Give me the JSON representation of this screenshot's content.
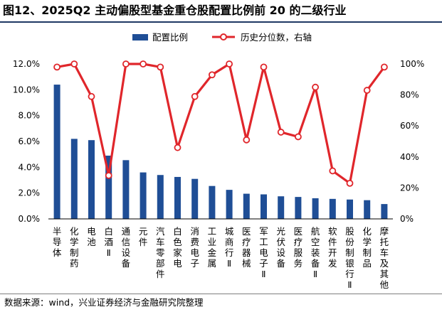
{
  "title": "图12、2025Q2 主动偏股型基金重仓股配置比例前 20 的二级行业",
  "source": "数据来源：wind，兴业证券经济与金融研究院整理",
  "colors": {
    "bar": "#1f4e96",
    "line": "#e0262b",
    "axis": "#000000",
    "rule": "#1f3864"
  },
  "chart_data": {
    "type": "bar+line",
    "categories": [
      "半导体",
      "化学制药",
      "电池",
      "白酒Ⅱ",
      "通信设备",
      "元件",
      "汽车零部件",
      "白色家电",
      "消费电子",
      "工业金属",
      "城商行Ⅱ",
      "医疗器械",
      "军工电子Ⅱ",
      "光伏设备",
      "医疗服务",
      "航空装备Ⅱ",
      "软件开发",
      "股份制银行Ⅱ",
      "化学制品",
      "摩托车及其他"
    ],
    "series": [
      {
        "name": "配置比例",
        "axis": "left",
        "type": "bar",
        "values": [
          10.4,
          6.2,
          6.1,
          4.9,
          4.55,
          3.6,
          3.4,
          3.25,
          3.1,
          2.55,
          2.25,
          1.95,
          1.9,
          1.75,
          1.7,
          1.6,
          1.55,
          1.5,
          1.45,
          1.15
        ]
      },
      {
        "name": "历史分位数，右轴",
        "axis": "right",
        "type": "line",
        "values": [
          98,
          100,
          79,
          28,
          100,
          100,
          98,
          46,
          79,
          93,
          100,
          51,
          98,
          56,
          53,
          85,
          31,
          23,
          83,
          98
        ]
      }
    ],
    "left_axis": {
      "ylim": [
        0,
        12
      ],
      "ticks": [
        "0.0%",
        "2.0%",
        "4.0%",
        "6.0%",
        "8.0%",
        "10.0%",
        "12.0%"
      ]
    },
    "right_axis": {
      "ylim": [
        0,
        100
      ],
      "ticks": [
        "0%",
        "20%",
        "40%",
        "60%",
        "80%",
        "100%"
      ]
    },
    "legend_position": "top-center",
    "grid": false
  }
}
